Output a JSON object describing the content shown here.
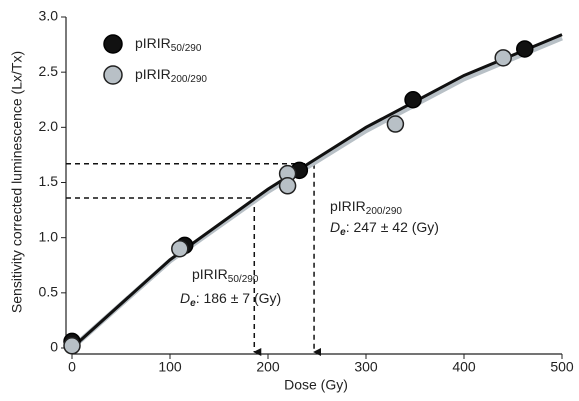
{
  "chart_data": {
    "type": "scatter",
    "x_label": "Dose (Gy)",
    "y_label": "Sensitivity corrected luminescence (Lx/Tx)",
    "xlim": [
      0,
      500
    ],
    "xticks": [
      0,
      100,
      200,
      300,
      400,
      500
    ],
    "ylim": [
      0,
      3
    ],
    "yticks": [
      0,
      0.5,
      {
        "value": 1,
        "label": "1.0"
      },
      1.5,
      {
        "value": 2,
        "label": "2.0"
      },
      2.5,
      {
        "value": 3,
        "label": "3.0"
      }
    ],
    "series": [
      {
        "name": "pIRIR",
        "subscript": "50/290",
        "color": "#111111",
        "edge": "#000000",
        "x": [
          0,
          115,
          232,
          348,
          462
        ],
        "values": [
          0.06,
          0.93,
          1.61,
          2.25,
          2.71
        ],
        "fit": {
          "x": [
            0,
            100,
            200,
            300,
            400,
            500
          ],
          "values": [
            0,
            0.8,
            1.44,
            2.0,
            2.47,
            2.84
          ]
        }
      },
      {
        "name": "pIRIR",
        "subscript": "200/290",
        "color": "#b8c0c6",
        "edge": "#222222",
        "x": [
          0,
          110,
          220,
          220,
          330,
          440
        ],
        "values": [
          0.02,
          0.9,
          1.58,
          1.47,
          2.03,
          2.63
        ],
        "fit": {
          "x": [
            0,
            100,
            200,
            300,
            400,
            500
          ],
          "values": [
            0,
            0.79,
            1.42,
            1.97,
            2.44,
            2.81
          ]
        }
      }
    ],
    "guides": [
      {
        "x": 186,
        "y": 1.36
      },
      {
        "x": 247,
        "y": 1.67
      }
    ],
    "annotations": [
      {
        "label": "pIRIR",
        "label_sub": "50/290",
        "de": "D",
        "de_sub": "e",
        "text": ": 186 ± 7 (Gy)"
      },
      {
        "label": "pIRIR",
        "label_sub": "200/290",
        "de": "D",
        "de_sub": "e",
        "text": ": 247 ± 42 (Gy)"
      }
    ]
  }
}
